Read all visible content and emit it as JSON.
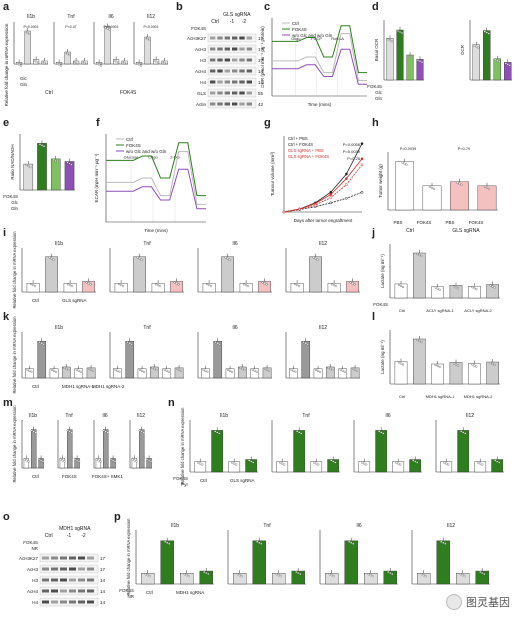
{
  "watermark": "图灵基因",
  "panels": [
    {
      "id": "a",
      "kind": "bar4",
      "genes": [
        "Il1b",
        "Tnf",
        "Il6",
        "Il12"
      ],
      "ylabel": "Relative fold change in mRNA expression",
      "groups": [
        "Ctrl",
        "FOK4S"
      ],
      "rows": [
        "Glc",
        "Gln"
      ],
      "pvals": [
        "P=0.0001",
        "P=0.47",
        "P=0.0001",
        "P=0.0001"
      ]
    },
    {
      "id": "b",
      "kind": "blot",
      "top": "GLS sgRNA",
      "ctrl": "Ctrl",
      "lanes": [
        "-1",
        "-2"
      ],
      "rowlabel": "FOK4S",
      "bands": [
        "AcH3K27",
        "AcH3",
        "H3",
        "AcH4",
        "H4",
        "GLS",
        "Actin"
      ],
      "sizes": [
        "17",
        "17",
        "17",
        "14",
        "14",
        "55",
        "42"
      ]
    },
    {
      "id": "c",
      "kind": "line",
      "ylabel": "OCR (pmol min⁻¹ µg⁻¹ protein)",
      "xlabel": "Time (mins)",
      "legend": [
        "Ctrl",
        "FOK4S",
        "w/o Glc and w/o Gln"
      ],
      "annot": [
        "Oligo",
        "FCCP",
        "Rot/AA"
      ]
    },
    {
      "id": "d",
      "kind": "bar2",
      "ylabel": "Basal OCR",
      "ylabel2": "OCR",
      "rows": [
        "FOK4S",
        "Glc",
        "Gln"
      ]
    },
    {
      "id": "e",
      "kind": "bar1",
      "ylabel": "Ratio NAD/NADH",
      "rows": [
        "FOK4S",
        "Glc",
        "Gln"
      ]
    },
    {
      "id": "f",
      "kind": "line",
      "ylabel": "ECAR (mpH min⁻¹ µg⁻¹)",
      "xlabel": "Time (mins)",
      "legend": [
        "Ctrl",
        "FOK4S",
        "w/o Glc and w/o Gln"
      ],
      "annot": [
        "Glucose",
        "Oligo",
        "2-DG"
      ]
    },
    {
      "id": "g",
      "kind": "growth",
      "ylabel": "Tumour volume (mm³)",
      "xlabel": "Days after tumor engraftment",
      "legend": [
        "Ctrl + PBS",
        "Ctrl + FOK4S",
        "GLS sgRNA + PBS",
        "GLS sgRNA + FOK4S"
      ],
      "pvals": [
        "P=0.0058",
        "P=0.0039",
        "P=0.28"
      ]
    },
    {
      "id": "h",
      "kind": "bar1",
      "ylabel": "Tumor weight (g)",
      "groups": [
        "PBS",
        "FOK4S",
        "PBS",
        "FOK4S"
      ],
      "xgroups": [
        "Ctrl",
        "GLS sgRNA"
      ],
      "pvals": [
        "P=0.0039",
        "P=0.79"
      ]
    },
    {
      "id": "i",
      "kind": "bar4",
      "genes": [
        "Il1b",
        "Tnf",
        "Il6",
        "Il12"
      ],
      "ylabel": "Relative fold change in mRNA expression",
      "xgroups": [
        "Ctrl",
        "GLS sgRNA"
      ]
    },
    {
      "id": "j",
      "kind": "bar1",
      "ylabel": "Lactate (ng ml⁻¹)",
      "groups": [
        "Ctrl",
        "ACLY sgRNA-1",
        "ACLY sgRNA-2"
      ],
      "rows": [
        "FOK4S"
      ]
    },
    {
      "id": "k",
      "kind": "bar4",
      "genes": [
        "Il1b",
        "Tnf",
        "Il6",
        "Il12"
      ],
      "ylabel": "Relative fold change in mRNA expression",
      "groups": [
        "Ctrl",
        "MDH1 sgRNA-1",
        "MDH1 sgRNA-2"
      ]
    },
    {
      "id": "l",
      "kind": "bar1",
      "ylabel": "Lactate (ng ml⁻¹)",
      "groups": [
        "Ctrl",
        "MDH1 sgRNA-1",
        "MDH1 sgRNA-2"
      ]
    },
    {
      "id": "m",
      "kind": "bar4",
      "genes": [
        "Il1b",
        "Tnf",
        "Il6",
        "Il12"
      ],
      "ylabel": "Relative fold change in mRNA expression",
      "groups": [
        "Ctrl",
        "FOK4S",
        "FOK4S+ SMK1"
      ]
    },
    {
      "id": "n",
      "kind": "bar4",
      "genes": [
        "Il1b",
        "Tnf",
        "Il6",
        "Il12"
      ],
      "ylabel": "Relative fold change in mRNA expression",
      "rows": [
        "FOK4S",
        "Pyr"
      ],
      "groups": [
        "Ctrl",
        "GLS sgRNA"
      ]
    },
    {
      "id": "o",
      "kind": "blot",
      "top": "MDH1 sgRNA",
      "ctrl": "Ctrl",
      "lanes": [
        "-1",
        "-2"
      ],
      "rowlabel": "FOK4S",
      "rowlabel2": "NR",
      "bands": [
        "AcH3K27",
        "AcH3",
        "H3",
        "AcH4",
        "H4"
      ],
      "sizes": [
        "17",
        "17",
        "14",
        "14",
        "14"
      ]
    },
    {
      "id": "p",
      "kind": "bar4",
      "genes": [
        "Il1b",
        "Tnf",
        "Il6",
        "Il12"
      ],
      "ylabel": "Relative fold change in mRNA expression",
      "rows": [
        "FOK4S",
        "NR"
      ],
      "groups": [
        "Ctrl",
        "MDH1 sgRNA"
      ]
    }
  ],
  "chart_data": [
    {
      "panel": "a",
      "type": "bar",
      "series": [
        {
          "name": "Il1b",
          "values": [
            1,
            22,
            3,
            2
          ]
        },
        {
          "name": "Tnf",
          "values": [
            1,
            8,
            2,
            2
          ]
        },
        {
          "name": "Il6",
          "values": [
            1,
            25,
            3,
            2
          ]
        },
        {
          "name": "Il12",
          "values": [
            1,
            18,
            3,
            2
          ]
        }
      ]
    },
    {
      "panel": "g",
      "type": "line",
      "x": [
        0,
        3,
        6,
        9,
        12,
        15
      ],
      "series": [
        {
          "name": "Ctrl + PBS",
          "values": [
            0,
            40,
            120,
            260,
            500,
            900
          ]
        },
        {
          "name": "Ctrl + FOK4S",
          "values": [
            0,
            30,
            70,
            120,
            180,
            260
          ]
        },
        {
          "name": "GLS sgRNA + PBS",
          "values": [
            0,
            40,
            110,
            230,
            440,
            700
          ]
        },
        {
          "name": "GLS sgRNA + FOK4S",
          "values": [
            0,
            35,
            90,
            190,
            360,
            620
          ]
        }
      ]
    },
    {
      "panel": "j",
      "type": "bar",
      "categories": [
        "Ctrl",
        "Ctrl+FOK4S",
        "ACLY-1",
        "ACLY-1+FOK4S",
        "ACLY-2",
        "ACLY-2+FOK4S"
      ],
      "values": [
        50,
        160,
        40,
        45,
        42,
        48
      ]
    },
    {
      "panel": "l",
      "type": "bar",
      "categories": [
        "Ctrl",
        "Ctrl+FOK4S",
        "MDH1-1",
        "MDH1-1+FOK4S",
        "MDH1-2",
        "MDH1-2+FOK4S"
      ],
      "values": [
        45,
        90,
        40,
        43,
        41,
        44
      ]
    }
  ]
}
